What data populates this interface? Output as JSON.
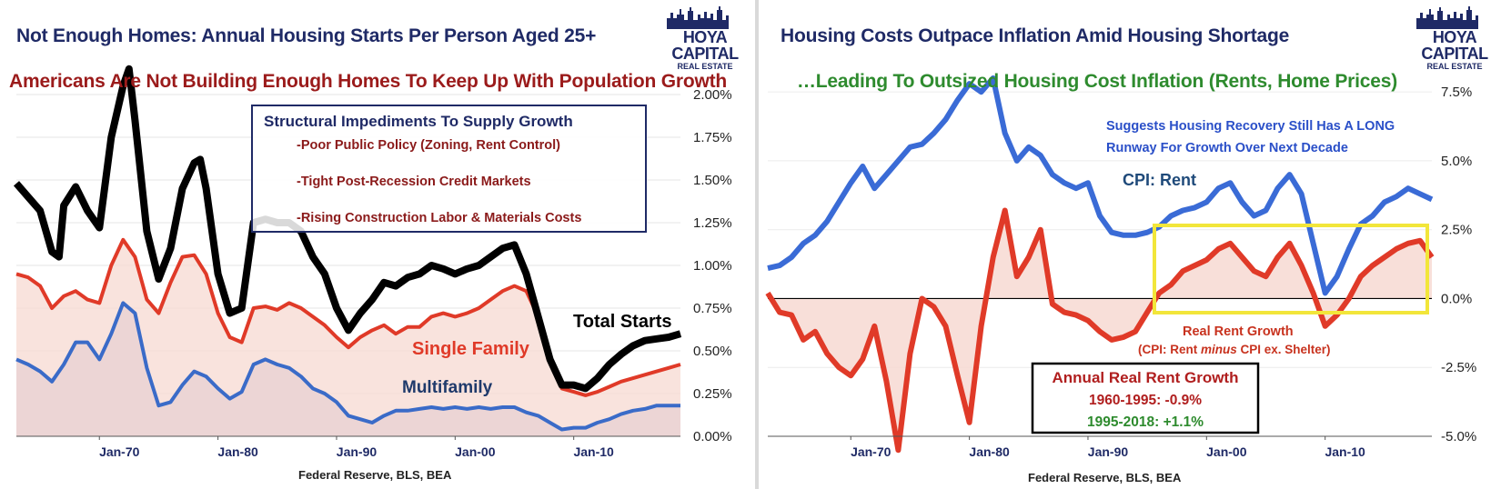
{
  "left": {
    "title": "Not Enough Homes: Annual Housing Starts Per Person Aged 25+",
    "subtitle": "Americans Are Not Building Enough Homes To Keep Up With Population Growth",
    "logo": {
      "line1": "HOYA CAPITAL",
      "line2": "REAL ESTATE"
    },
    "source": "Federal Reserve, BLS, BEA",
    "callout": {
      "title": "Structural Impediments To Supply Growth",
      "items": [
        "-Poor Public Policy (Zoning, Rent Control)",
        "-Tight Post-Recession Credit Markets",
        "-Rising Construction Labor & Materials Costs"
      ]
    },
    "labels": {
      "total": "Total Starts",
      "single": "Single Family",
      "multi": "Multifamily"
    },
    "colors": {
      "total": "#000000",
      "single": "#e03a28",
      "multi": "#3a6bc8",
      "single_fill": "#f7d9d2",
      "multi_fill": "#c9c8de"
    }
  },
  "right": {
    "title": "Housing Costs Outpace Inflation Amid Housing Shortage",
    "subtitle": "…Leading To Outsized Housing Cost Inflation (Rents, Home Prices)",
    "logo": {
      "line1": "HOYA CAPITAL",
      "line2": "REAL ESTATE"
    },
    "source": "Federal Reserve, BLS, BEA",
    "note": [
      "Suggests Housing Recovery Still Has A LONG",
      "Runway For Growth Over Next Decade"
    ],
    "labels": {
      "cpi_rent": "CPI: Rent",
      "real_rent": "Real Rent Growth",
      "real_rent_sub_a": "(CPI: Rent ",
      "real_rent_sub_b": "minus",
      "real_rent_sub_c": " CPI ex. Shelter)"
    },
    "box": {
      "title": "Annual Real Rent Growth",
      "line1": "1960-1995: -0.9%",
      "line2": "1995-2018: +1.1%"
    },
    "colors": {
      "cpi_rent": "#3a6bd6",
      "real_rent": "#e03a28",
      "highlight": "#f2e63a",
      "fill": "#f7d9d2",
      "line2": "#2e8b2e"
    }
  },
  "chart_data": [
    {
      "type": "area",
      "title": "Not Enough Homes: Annual Housing Starts Per Person Aged 25+",
      "subtitle": "Americans Are Not Building Enough Homes To Keep Up With Population Growth",
      "source": "Federal Reserve, BLS, BEA",
      "x_ticks": [
        "Jan-70",
        "Jan-80",
        "Jan-90",
        "Jan-00",
        "Jan-10"
      ],
      "y_ticks": [
        "0.00%",
        "0.25%",
        "0.50%",
        "0.75%",
        "1.00%",
        "1.25%",
        "1.50%",
        "1.75%",
        "2.00%"
      ],
      "xlim": [
        1963,
        2019
      ],
      "ylim": [
        0,
        2.0
      ],
      "y_axis_side": "right",
      "series": [
        {
          "name": "Total Starts",
          "x": [
            1963,
            1964,
            1965,
            1966,
            1966.6,
            1967,
            1968,
            1969,
            1970,
            1971,
            1972,
            1972.5,
            1973,
            1974,
            1975,
            1976,
            1977,
            1978,
            1978.5,
            1979,
            1980,
            1981,
            1982,
            1983,
            1984,
            1985,
            1986,
            1987,
            1988,
            1989,
            1990,
            1991,
            1992,
            1993,
            1994,
            1995,
            1996,
            1997,
            1998,
            1999,
            2000,
            2001,
            2002,
            2003,
            2004,
            2005,
            2006,
            2007,
            2008,
            2009,
            2010,
            2011,
            2012,
            2013,
            2014,
            2015,
            2016,
            2017,
            2018,
            2019
          ],
          "y": [
            1.48,
            1.4,
            1.32,
            1.08,
            1.05,
            1.35,
            1.46,
            1.32,
            1.22,
            1.75,
            2.05,
            2.15,
            1.85,
            1.2,
            0.92,
            1.1,
            1.45,
            1.6,
            1.62,
            1.45,
            0.95,
            0.72,
            0.75,
            1.25,
            1.27,
            1.25,
            1.25,
            1.2,
            1.05,
            0.95,
            0.75,
            0.62,
            0.72,
            0.8,
            0.9,
            0.88,
            0.93,
            0.95,
            1.0,
            0.98,
            0.95,
            0.98,
            1.0,
            1.05,
            1.1,
            1.12,
            0.95,
            0.7,
            0.45,
            0.3,
            0.3,
            0.28,
            0.34,
            0.42,
            0.48,
            0.53,
            0.56,
            0.57,
            0.58,
            0.6
          ]
        },
        {
          "name": "Single Family",
          "x": [
            1963,
            1964,
            1965,
            1966,
            1967,
            1968,
            1969,
            1970,
            1971,
            1972,
            1973,
            1974,
            1975,
            1976,
            1977,
            1978,
            1979,
            1980,
            1981,
            1982,
            1983,
            1984,
            1985,
            1986,
            1987,
            1988,
            1989,
            1990,
            1991,
            1992,
            1993,
            1994,
            1995,
            1996,
            1997,
            1998,
            1999,
            2000,
            2001,
            2002,
            2003,
            2004,
            2005,
            2006,
            2007,
            2008,
            2009,
            2010,
            2011,
            2012,
            2013,
            2014,
            2015,
            2016,
            2017,
            2018,
            2019
          ],
          "y": [
            0.95,
            0.93,
            0.88,
            0.75,
            0.82,
            0.85,
            0.8,
            0.78,
            1.0,
            1.15,
            1.05,
            0.8,
            0.72,
            0.9,
            1.05,
            1.06,
            0.95,
            0.72,
            0.58,
            0.55,
            0.75,
            0.76,
            0.74,
            0.78,
            0.75,
            0.7,
            0.65,
            0.58,
            0.52,
            0.58,
            0.62,
            0.65,
            0.6,
            0.64,
            0.64,
            0.7,
            0.72,
            0.7,
            0.72,
            0.75,
            0.8,
            0.85,
            0.88,
            0.85,
            0.7,
            0.45,
            0.28,
            0.26,
            0.24,
            0.26,
            0.29,
            0.32,
            0.34,
            0.36,
            0.38,
            0.4,
            0.42
          ]
        },
        {
          "name": "Multifamily",
          "x": [
            1963,
            1964,
            1965,
            1966,
            1967,
            1968,
            1969,
            1970,
            1971,
            1972,
            1973,
            1974,
            1975,
            1976,
            1977,
            1978,
            1979,
            1980,
            1981,
            1982,
            1983,
            1984,
            1985,
            1986,
            1987,
            1988,
            1989,
            1990,
            1991,
            1992,
            1993,
            1994,
            1995,
            1996,
            1997,
            1998,
            1999,
            2000,
            2001,
            2002,
            2003,
            2004,
            2005,
            2006,
            2007,
            2008,
            2009,
            2010,
            2011,
            2012,
            2013,
            2014,
            2015,
            2016,
            2017,
            2018,
            2019
          ],
          "y": [
            0.45,
            0.42,
            0.38,
            0.32,
            0.42,
            0.55,
            0.55,
            0.45,
            0.6,
            0.78,
            0.72,
            0.4,
            0.18,
            0.2,
            0.3,
            0.38,
            0.35,
            0.28,
            0.22,
            0.26,
            0.42,
            0.45,
            0.42,
            0.4,
            0.35,
            0.28,
            0.25,
            0.2,
            0.12,
            0.1,
            0.08,
            0.12,
            0.15,
            0.15,
            0.16,
            0.17,
            0.16,
            0.17,
            0.16,
            0.17,
            0.16,
            0.17,
            0.17,
            0.14,
            0.12,
            0.08,
            0.04,
            0.05,
            0.05,
            0.08,
            0.1,
            0.13,
            0.15,
            0.16,
            0.18,
            0.18,
            0.18
          ]
        }
      ],
      "annotations": [
        "Structural Impediments To Supply Growth",
        "-Poor Public Policy (Zoning, Rent Control)",
        "-Tight Post-Recession Credit Markets",
        "-Rising Construction Labor & Materials Costs"
      ]
    },
    {
      "type": "line",
      "title": "Housing Costs Outpace Inflation Amid Housing Shortage",
      "subtitle": "…Leading To Outsized Housing Cost Inflation (Rents, Home Prices)",
      "source": "Federal Reserve, BLS, BEA",
      "x_ticks": [
        "Jan-70",
        "Jan-80",
        "Jan-90",
        "Jan-00",
        "Jan-10"
      ],
      "y_ticks": [
        "7.5%",
        "5.0%",
        "2.5%",
        "0.0%",
        "-2.5%",
        "-5.0%"
      ],
      "xlim": [
        1963,
        2019
      ],
      "ylim": [
        -5,
        8
      ],
      "y_axis_side": "right",
      "series": [
        {
          "name": "CPI: Rent",
          "x": [
            1963,
            1964,
            1965,
            1966,
            1967,
            1968,
            1969,
            1970,
            1971,
            1972,
            1973,
            1974,
            1975,
            1976,
            1977,
            1978,
            1979,
            1980,
            1981,
            1982,
            1983,
            1984,
            1985,
            1986,
            1987,
            1988,
            1989,
            1990,
            1991,
            1992,
            1993,
            1994,
            1995,
            1996,
            1997,
            1998,
            1999,
            2000,
            2001,
            2002,
            2003,
            2004,
            2005,
            2006,
            2007,
            2008,
            2009,
            2010,
            2011,
            2012,
            2013,
            2014,
            2015,
            2016,
            2017,
            2018,
            2019
          ],
          "y": [
            1.1,
            1.2,
            1.5,
            2.0,
            2.3,
            2.8,
            3.5,
            4.2,
            4.8,
            4.0,
            4.5,
            5.0,
            5.5,
            5.6,
            6.0,
            6.5,
            7.2,
            7.8,
            7.5,
            8.0,
            6.0,
            5.0,
            5.5,
            5.2,
            4.5,
            4.2,
            4.0,
            4.2,
            3.0,
            2.4,
            2.3,
            2.3,
            2.4,
            2.6,
            3.0,
            3.2,
            3.3,
            3.5,
            4.0,
            4.2,
            3.5,
            3.0,
            3.2,
            4.0,
            4.5,
            3.8,
            2.0,
            0.2,
            0.8,
            1.8,
            2.7,
            3.0,
            3.5,
            3.7,
            4.0,
            3.8,
            3.6
          ]
        },
        {
          "name": "Real Rent Growth",
          "x": [
            1963,
            1964,
            1965,
            1966,
            1967,
            1968,
            1969,
            1970,
            1971,
            1972,
            1973,
            1974,
            1975,
            1976,
            1977,
            1978,
            1979,
            1980,
            1981,
            1982,
            1983,
            1984,
            1985,
            1986,
            1987,
            1988,
            1989,
            1990,
            1991,
            1992,
            1993,
            1994,
            1995,
            1996,
            1997,
            1998,
            1999,
            2000,
            2001,
            2002,
            2003,
            2004,
            2005,
            2006,
            2007,
            2008,
            2009,
            2010,
            2011,
            2012,
            2013,
            2014,
            2015,
            2016,
            2017,
            2018,
            2019
          ],
          "y": [
            0.2,
            -0.5,
            -0.6,
            -1.5,
            -1.2,
            -2.0,
            -2.5,
            -2.8,
            -2.2,
            -1.0,
            -3.0,
            -5.5,
            -2.0,
            0.0,
            -0.3,
            -1.0,
            -2.8,
            -4.5,
            -1.0,
            1.5,
            3.2,
            0.8,
            1.5,
            2.5,
            -0.2,
            -0.5,
            -0.6,
            -0.8,
            -1.2,
            -1.5,
            -1.4,
            -1.2,
            -0.5,
            0.2,
            0.5,
            1.0,
            1.2,
            1.4,
            1.8,
            2.0,
            1.5,
            1.0,
            0.8,
            1.5,
            2.0,
            1.2,
            0.2,
            -1.0,
            -0.6,
            0.0,
            0.8,
            1.2,
            1.5,
            1.8,
            2.0,
            2.1,
            1.5
          ]
        }
      ],
      "annotations": [
        "Suggests Housing Recovery Still Has A LONG Runway For Growth Over Next Decade",
        "CPI: Rent",
        "Real Rent Growth",
        "Annual Real Rent Growth",
        "1960-1995: -0.9%",
        "1995-2018: +1.1%"
      ]
    }
  ]
}
